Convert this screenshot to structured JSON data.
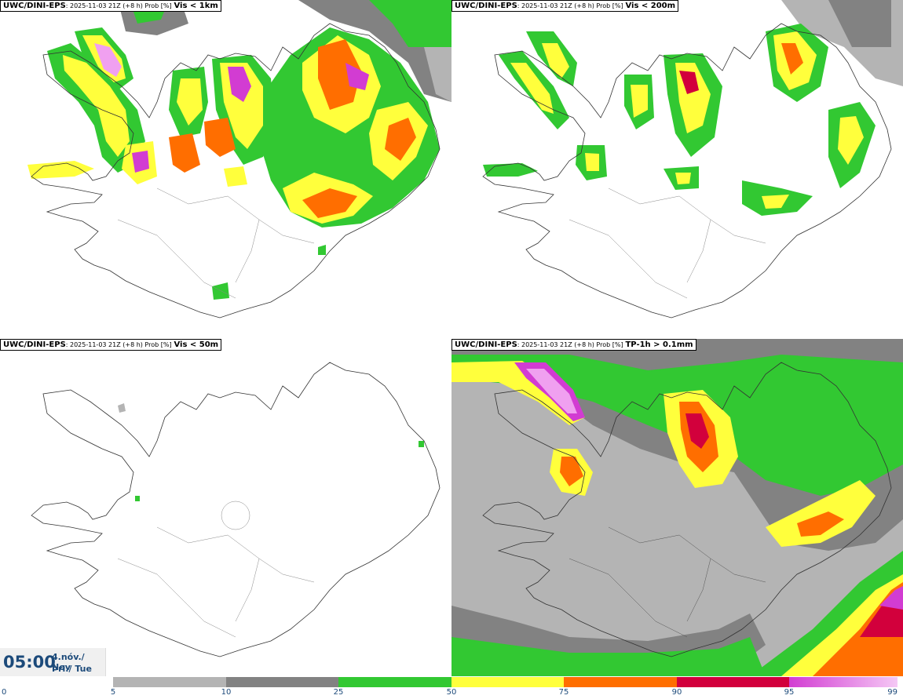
{
  "panels": [
    {
      "source": "UWC/DINI-EPS",
      "meta": ": 2025-11-03 21Z (+8 h) Prob [%]",
      "variable": "Vis < 1km"
    },
    {
      "source": "UWC/DINI-EPS",
      "meta": ": 2025-11-03 21Z (+8 h) Prob [%]",
      "variable": "Vis < 200m"
    },
    {
      "source": "UWC/DINI-EPS",
      "meta": ": 2025-11-03 21Z (+8 h) Prob [%]",
      "variable": "Vis < 50m"
    },
    {
      "source": "UWC/DINI-EPS",
      "meta": ": 2025-11-03 21Z (+8 h) Prob [%]",
      "variable": "TP-1h > 0.1mm"
    }
  ],
  "valid_time": {
    "time": "05:00",
    "date": "4.nóv./ Nov",
    "day": "Þri./ Tue"
  },
  "colorbar": {
    "ticks": [
      "0",
      "5",
      "10",
      "25",
      "50",
      "75",
      "90",
      "95",
      "99"
    ],
    "colors": [
      "#ffffff",
      "#b4b4b4",
      "#828282",
      "#32c832",
      "#ffff3c",
      "#ff6e00",
      "#d2003c",
      "#e678e6",
      "#f5c8f5"
    ]
  },
  "palette": {
    "g5": "#b4b4b4",
    "g10": "#828282",
    "green": "#32c832",
    "yellow": "#ffff3c",
    "orange": "#ff6e00",
    "red": "#d2003c",
    "magenta": "#d23cd2",
    "pink": "#f0a0f0"
  }
}
